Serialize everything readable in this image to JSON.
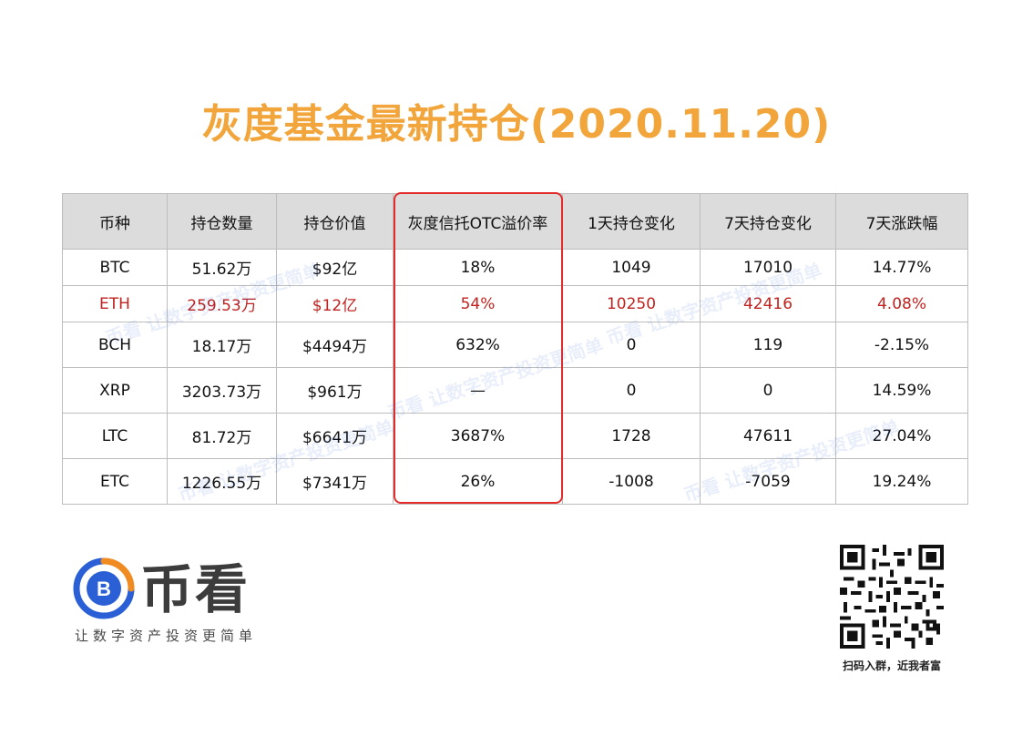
{
  "title": "灰度基金最新持仓(2020.11.20)",
  "colors": {
    "title": "#f2a53a",
    "header_bg": "#dcdcdc",
    "highlight_text": "#c0221f",
    "box_border": "#e32b2b",
    "logo_blue": "#2a5fd6",
    "logo_orange": "#f08b22"
  },
  "table": {
    "headers": [
      "币种",
      "持仓数量",
      "持仓价值",
      "灰度信托OTC溢价率",
      "1天持仓变化",
      "7天持仓变化",
      "7天涨跌幅"
    ],
    "rows": [
      [
        "BTC",
        "51.62万",
        "$92亿",
        "18%",
        "1049",
        "17010",
        "14.77%"
      ],
      [
        "ETH",
        "259.53万",
        "$12亿",
        "54%",
        "10250",
        "42416",
        "4.08%"
      ],
      [
        "BCH",
        "18.17万",
        "$4494万",
        "632%",
        "0",
        "119",
        "-2.15%"
      ],
      [
        "XRP",
        "3203.73万",
        "$961万",
        "—",
        "0",
        "0",
        "14.59%"
      ],
      [
        "LTC",
        "81.72万",
        "$6641万",
        "3687%",
        "1728",
        "47611",
        "27.04%"
      ],
      [
        "ETC",
        "1226.55万",
        "$7341万",
        "26%",
        "-1008",
        "-7059",
        "19.24%"
      ]
    ]
  },
  "logo": {
    "name": "币看",
    "slogan": "让数字资产投资更简单",
    "icon": "b-coin-icon"
  },
  "qr": {
    "icon": "qr-code-icon",
    "caption": "扫码入群，近我者富"
  },
  "watermark": "币看 让数字资产投资更简单"
}
